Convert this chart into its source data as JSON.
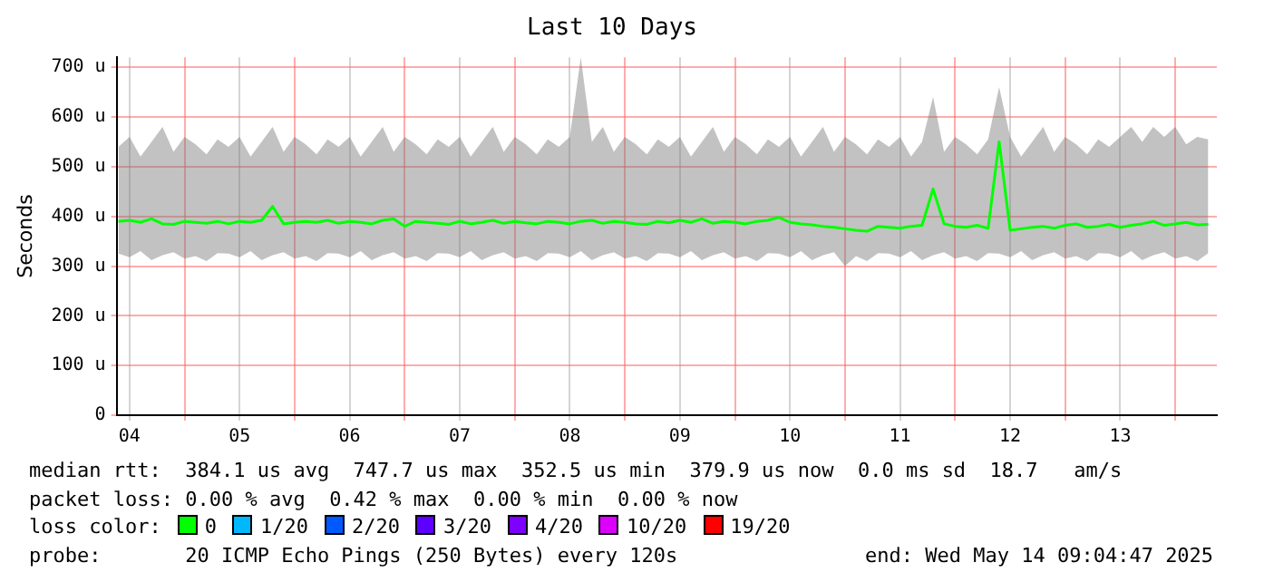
{
  "chart_data": {
    "type": "line",
    "title": "Last 10 Days",
    "ylabel": "Seconds",
    "xlim": [
      4.383,
      14.378
    ],
    "xticks": [
      {
        "value": 4.5,
        "label": "04"
      },
      {
        "value": 5,
        "label": null
      },
      {
        "value": 5.5,
        "label": "05"
      },
      {
        "value": 6,
        "label": null
      },
      {
        "value": 6.5,
        "label": "06"
      },
      {
        "value": 7,
        "label": null
      },
      {
        "value": 7.5,
        "label": "07"
      },
      {
        "value": 8,
        "label": null
      },
      {
        "value": 8.5,
        "label": "08"
      },
      {
        "value": 9,
        "label": null
      },
      {
        "value": 9.5,
        "label": "09"
      },
      {
        "value": 10,
        "label": null
      },
      {
        "value": 10.5,
        "label": "10"
      },
      {
        "value": 11,
        "label": null
      },
      {
        "value": 11.5,
        "label": "11"
      },
      {
        "value": 12,
        "label": null
      },
      {
        "value": 12.5,
        "label": "12"
      },
      {
        "value": 13,
        "label": null
      },
      {
        "value": 13.5,
        "label": "13"
      },
      {
        "value": 14,
        "label": null
      }
    ],
    "ylim": [
      0,
      720
    ],
    "yticks": [
      0,
      {
        "value": 100,
        "label": "100 u"
      },
      {
        "value": 200,
        "label": "200 u"
      },
      {
        "value": 300,
        "label": "300 u"
      },
      {
        "value": 400,
        "label": "400 u"
      },
      {
        "value": 500,
        "label": "500 u"
      },
      {
        "value": 600,
        "label": "600 u"
      },
      {
        "value": 700,
        "label": "700 u"
      }
    ],
    "grid": true,
    "legend": false,
    "marker": "none",
    "line_style": "solid",
    "series": [
      {
        "color": "#00ff00",
        "x": [
          4.4,
          4.5,
          4.6,
          4.7,
          4.8,
          4.9,
          5.0,
          5.1,
          5.2,
          5.3,
          5.4,
          5.5,
          5.6,
          5.7,
          5.8,
          5.9,
          6.0,
          6.1,
          6.2,
          6.3,
          6.4,
          6.5,
          6.6,
          6.7,
          6.8,
          6.9,
          7.0,
          7.1,
          7.2,
          7.3,
          7.4,
          7.5,
          7.6,
          7.7,
          7.8,
          7.9,
          8.0,
          8.1,
          8.2,
          8.3,
          8.4,
          8.5,
          8.6,
          8.7,
          8.8,
          8.9,
          9.0,
          9.1,
          9.2,
          9.3,
          9.4,
          9.5,
          9.6,
          9.7,
          9.8,
          9.9,
          10.0,
          10.1,
          10.2,
          10.3,
          10.4,
          10.5,
          10.6,
          10.7,
          10.8,
          10.9,
          11.0,
          11.1,
          11.2,
          11.3,
          11.4,
          11.5,
          11.6,
          11.7,
          11.8,
          11.9,
          12.0,
          12.1,
          12.2,
          12.3,
          12.4,
          12.5,
          12.6,
          12.7,
          12.8,
          12.9,
          13.0,
          13.1,
          13.2,
          13.3,
          13.4,
          13.5,
          13.6,
          13.7,
          13.8,
          13.9,
          14.0,
          14.1,
          14.2,
          14.3
        ],
        "values": [
          390,
          392,
          388,
          395,
          385,
          384,
          390,
          388,
          386,
          390,
          385,
          390,
          388,
          392,
          420,
          385,
          388,
          390,
          388,
          392,
          386,
          390,
          388,
          385,
          392,
          395,
          380,
          390,
          388,
          386,
          384,
          390,
          385,
          388,
          392,
          386,
          390,
          387,
          385,
          390,
          388,
          385,
          390,
          392,
          386,
          390,
          388,
          385,
          384,
          390,
          387,
          392,
          388,
          395,
          386,
          390,
          388,
          385,
          390,
          392,
          398,
          388,
          385,
          383,
          380,
          378,
          375,
          372,
          370,
          380,
          378,
          376,
          380,
          382,
          455,
          385,
          380,
          378,
          382,
          376,
          550,
          372,
          375,
          378,
          380,
          376,
          382,
          385,
          378,
          380,
          384,
          378,
          382,
          385,
          390,
          382,
          385,
          388,
          383,
          384
        ],
        "upper": [
          540,
          560,
          520,
          550,
          580,
          530,
          560,
          545,
          525,
          555,
          540,
          560,
          520,
          550,
          580,
          530,
          560,
          545,
          525,
          555,
          540,
          560,
          520,
          550,
          580,
          530,
          560,
          545,
          525,
          555,
          540,
          560,
          520,
          550,
          580,
          530,
          560,
          545,
          525,
          555,
          540,
          560,
          720,
          550,
          580,
          530,
          560,
          545,
          525,
          555,
          540,
          560,
          520,
          550,
          580,
          530,
          560,
          545,
          525,
          555,
          540,
          560,
          520,
          550,
          580,
          530,
          560,
          545,
          525,
          555,
          540,
          560,
          520,
          550,
          640,
          530,
          560,
          545,
          525,
          555,
          660,
          560,
          520,
          550,
          580,
          530,
          560,
          545,
          525,
          555,
          540,
          560,
          580,
          550,
          580,
          560,
          580,
          545,
          560,
          555
        ],
        "lower": [
          325,
          318,
          330,
          312,
          322,
          328,
          315,
          320,
          310,
          326,
          325,
          318,
          330,
          312,
          322,
          328,
          315,
          320,
          310,
          326,
          325,
          318,
          330,
          312,
          322,
          328,
          315,
          320,
          310,
          326,
          325,
          318,
          330,
          312,
          322,
          328,
          315,
          320,
          310,
          326,
          325,
          318,
          330,
          312,
          322,
          328,
          315,
          320,
          310,
          326,
          325,
          318,
          330,
          312,
          322,
          328,
          315,
          320,
          310,
          326,
          325,
          318,
          330,
          312,
          322,
          328,
          300,
          320,
          310,
          326,
          325,
          318,
          330,
          312,
          322,
          328,
          315,
          320,
          310,
          326,
          325,
          318,
          330,
          312,
          322,
          328,
          315,
          320,
          310,
          326,
          325,
          318,
          330,
          312,
          322,
          328,
          315,
          320,
          310,
          326
        ]
      }
    ],
    "annotations": [
      "median rtt:  384.1 us avg  747.7 us max  352.5 us min  379.9 us now  0.0 ms sd  18.7   am/s",
      "packet loss: 0.00 % avg  0.42 % max  0.00 % min  0.00 % now",
      "loss color:",
      "0",
      "1/20",
      "2/20",
      "3/20",
      "4/20",
      "10/20",
      "19/20",
      "probe:       20 ICMP Echo Pings (250 Bytes) every 120s",
      "end: Wed May 14 09:04:47 2025"
    ]
  }
}
